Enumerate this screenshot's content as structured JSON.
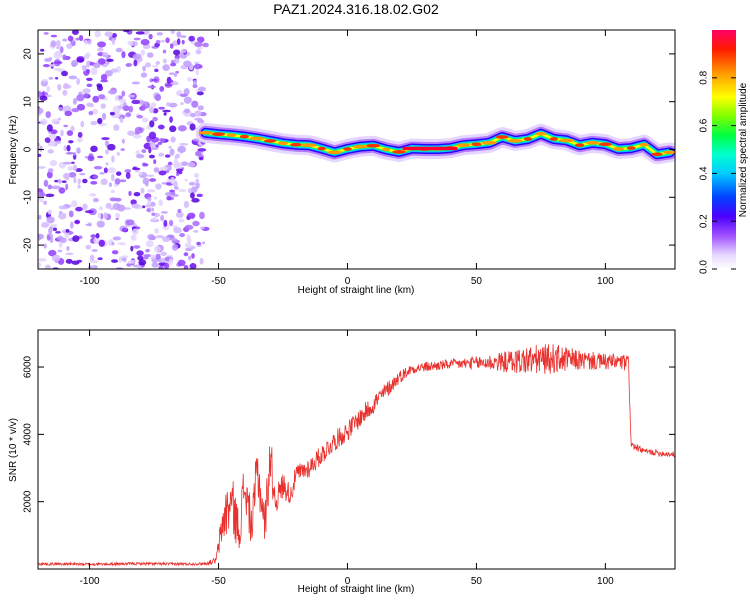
{
  "figure": {
    "title": "PAZ1.2024.316.18.02.G02"
  },
  "chart_data": [
    {
      "type": "heatmap",
      "title": "PAZ1.2024.316.18.02.G02",
      "xlabel": "Height of straight line (km)",
      "ylabel": "Frequency (Hz)",
      "xlim": [
        -120,
        127
      ],
      "ylim": [
        -25,
        25
      ],
      "xticks": [
        -100,
        -50,
        0,
        50,
        100
      ],
      "yticks": [
        -20,
        -10,
        0,
        10,
        20
      ],
      "grid": false,
      "noise_region_x": [
        -120,
        -55
      ],
      "signal_ridge": {
        "x": [
          -55,
          -50,
          -45,
          -40,
          -35,
          -30,
          -25,
          -20,
          -15,
          -10,
          -5,
          0,
          5,
          10,
          15,
          20,
          25,
          30,
          35,
          40,
          45,
          50,
          55,
          60,
          65,
          70,
          75,
          80,
          85,
          90,
          95,
          100,
          105,
          110,
          115,
          120,
          125
        ],
        "frequency_hz": [
          3.5,
          3.2,
          3.0,
          2.7,
          2.3,
          1.8,
          1.3,
          1.0,
          0.9,
          0.2,
          -0.6,
          0.1,
          0.6,
          0.8,
          0.0,
          -0.5,
          0.2,
          0.1,
          0.1,
          0.3,
          0.9,
          1.1,
          1.4,
          2.6,
          1.8,
          2.2,
          3.3,
          2.2,
          1.9,
          0.9,
          1.4,
          1.1,
          0.1,
          0.3,
          1.0,
          -1.0,
          -0.6
        ]
      },
      "colorbar": {
        "label": "Normalized spectral amplitude",
        "ticks": [
          "0.0",
          "0.2",
          "0.4",
          "0.6",
          "0.8"
        ],
        "range": [
          0,
          1
        ],
        "colormap": [
          "#ffffff",
          "#d9c3ff",
          "#9b3dff",
          "#3a00ff",
          "#0066ff",
          "#00ffff",
          "#00ff66",
          "#66ff00",
          "#ffff00",
          "#ff9900",
          "#ff0000",
          "#ff0066"
        ]
      }
    },
    {
      "type": "line",
      "title": "",
      "xlabel": "Height of straight line (km)",
      "ylabel": "SNR (10 * v/v)",
      "xlim": [
        -120,
        127
      ],
      "ylim": [
        0,
        7100
      ],
      "xticks": [
        -100,
        -50,
        0,
        50,
        100
      ],
      "yticks": [
        2000,
        4000,
        6000
      ],
      "grid": false,
      "series": [
        {
          "color": "#e8302c",
          "x": [
            -120,
            -110,
            -100,
            -90,
            -80,
            -70,
            -60,
            -55,
            -51,
            -48,
            -45,
            -42,
            -40,
            -37,
            -35,
            -32,
            -30,
            -28,
            -25,
            -22,
            -20,
            -15,
            -10,
            -5,
            0,
            5,
            10,
            15,
            20,
            25,
            30,
            40,
            50,
            60,
            70,
            80,
            90,
            100,
            105,
            109,
            110,
            112,
            115,
            120,
            127
          ],
          "values": [
            150,
            150,
            140,
            150,
            160,
            150,
            150,
            160,
            250,
            1500,
            2000,
            1100,
            2500,
            1200,
            3000,
            1300,
            3400,
            2000,
            2500,
            2200,
            2800,
            3000,
            3400,
            3800,
            4100,
            4500,
            4900,
            5300,
            5700,
            5950,
            6000,
            6080,
            6120,
            6150,
            6200,
            6250,
            6200,
            6150,
            6150,
            6100,
            3700,
            3600,
            3500,
            3450,
            3400
          ],
          "noise_amplitude": [
            40,
            40,
            40,
            40,
            40,
            40,
            40,
            40,
            100,
            700,
            900,
            600,
            800,
            600,
            900,
            600,
            900,
            400,
            400,
            300,
            300,
            300,
            300,
            300,
            300,
            300,
            300,
            250,
            200,
            150,
            150,
            150,
            200,
            300,
            450,
            450,
            300,
            250,
            250,
            250,
            100,
            100,
            90,
            90,
            90
          ]
        }
      ]
    }
  ]
}
